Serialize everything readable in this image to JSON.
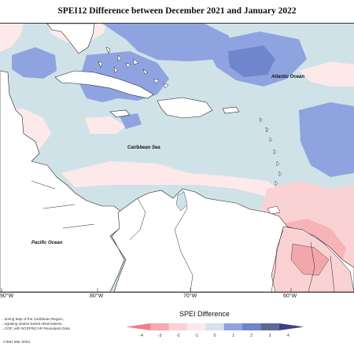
{
  "title": "SPEI12 Difference between December 2021 and January 2022",
  "oceans": {
    "atlantic": "Atlantic Ocean",
    "caribbean": "Caribbean Sea",
    "pacific": "Pacific Ocean"
  },
  "longitude_labels": [
    "90°W",
    "80°W",
    "70°W",
    "60°W"
  ],
  "notes": {
    "line1": "...itoring Map of the Caribbean Region,",
    "line2": "...egrating station based observations,",
    "line3": "...COF, with NCEP/NCAR Reanalysis Data"
  },
  "credit": "CIMH Mar-2022",
  "legend": {
    "title": "SPEI Difference",
    "ticks": [
      "-4",
      "-3",
      "-2",
      "-1",
      "0",
      "1",
      "2",
      "3",
      "4"
    ],
    "colors": [
      "#f07f86",
      "#f6a9ae",
      "#fbd2d4",
      "#fde9ea",
      "#d3e4ea",
      "#8fa3e0",
      "#6f86cc",
      "#5a6a94",
      "#3c3f86"
    ]
  },
  "colors": {
    "neutral_water": "#cfe2e8",
    "land": "#ffffff",
    "wet_anomaly": "#8fa3e0",
    "strong_wet": "#6f86cc",
    "dry_anomaly": "#f6c9cd",
    "slight_dry": "#fde9ea"
  }
}
